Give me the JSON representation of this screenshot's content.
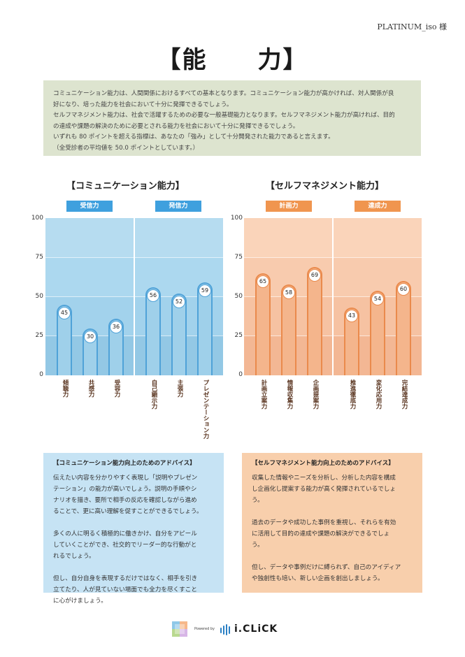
{
  "recipient": "PLATINUM_iso 様",
  "page_title": "【能　　力】",
  "intro": [
    "コミュニケーション能力は、人間関係におけるすべての基本となります。コミュニケーション能力が高かければ、対人関係が良",
    "好になり、培った能力を社会において十分に発揮できるでしょう。",
    "セルフマネジメント能力は、社会で活躍するための必要な一般基礎能力となります。セルフマネジメント能力が高ければ、目的",
    "の達成や課題の解決のために必要とされる能力を社会において十分に発揮できるでしょう。",
    "いずれも 80 ポイントを超える指標は、あなたの「強み」として十分開発された能力であると言えます。",
    "（全受診者の平均値を 50.0 ポイントとしています。）"
  ],
  "chart_data": [
    {
      "type": "bar",
      "title": "【コミュニケーション能力】",
      "groups": [
        "受信力",
        "発信力"
      ],
      "categories": [
        "傾聴力",
        "共感力",
        "受容力",
        "自己顕示力",
        "主張力",
        "プレゼンテーション力"
      ],
      "values": [
        45,
        30,
        36,
        56,
        52,
        59
      ],
      "ylim": [
        0,
        100
      ],
      "yticks": [
        "0",
        "25",
        "50",
        "75",
        "100"
      ],
      "color": "#9fd0ea"
    },
    {
      "type": "bar",
      "title": "【セルフマネジメント能力】",
      "groups": [
        "計画力",
        "達成力"
      ],
      "categories": [
        "計画立案力",
        "情報収集力",
        "企画提案力",
        "推進徹底力",
        "変化応用力",
        "完結達成力"
      ],
      "values": [
        65,
        58,
        69,
        43,
        54,
        60
      ],
      "ylim": [
        0,
        100
      ],
      "yticks": [
        "0",
        "25",
        "50",
        "75",
        "100"
      ],
      "color": "#f4b58c"
    }
  ],
  "advice": [
    {
      "title": "【コミュニケーション能力向上のためのアドバイス】",
      "paragraphs": [
        [
          "伝えたい内容を分かりやすく表現し「説明やプレゼン",
          "テーション」の能力が高いでしょう。説明の手順やシ",
          "ナリオを描き、要所で相手の反応を確認しながら進め",
          "ることで、更に高い理解を促すことができるでしょう。"
        ],
        [
          "多くの人に明るく積極的に働きかけ、自分をアピール",
          "していくことができ、社交的でリーダー的な行動がと",
          "れるでしょう。"
        ],
        [
          "但し、自分自身を表現するだけではなく、相手を引き",
          "立てたり、人が見ていない場面でも全力を尽くすこと",
          "に心がけましょう。"
        ]
      ]
    },
    {
      "title": "【セルフマネジメント能力向上のためのアドバイス】",
      "paragraphs": [
        [
          "収集した情報やニーズを分析し、分析した内容を構成",
          "し企画化し提案する能力が高く発揮されているでしょ",
          "う。"
        ],
        [
          "過去のデータや成功した事例を重視し、それらを有効",
          "に活用して目的の達成や課題の解決ができるでしょ",
          "う。"
        ],
        [
          "但し、データや事例だけに縛られず、自己のアイディア",
          "や独創性も培い、新しい企画を創出しましょう。"
        ]
      ]
    }
  ],
  "footer": {
    "powered_by": "Powered by",
    "brand": "i.CLiCK"
  },
  "colors": {
    "blue_plot": "#a8d6ee",
    "blue_label": "#3fa0de",
    "orange_plot": "#f6c6a6",
    "orange_label": "#f0954f"
  }
}
